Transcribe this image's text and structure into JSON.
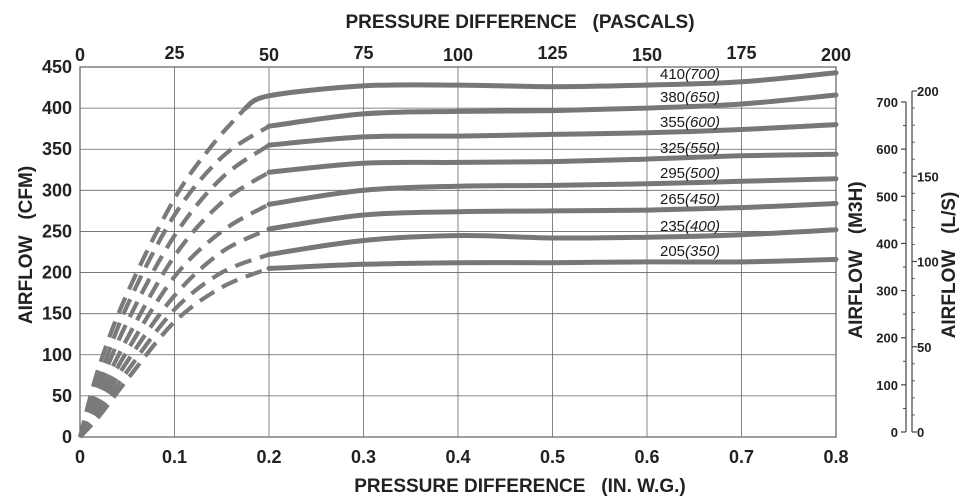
{
  "chart_data": {
    "type": "line",
    "top_title": "PRESSURE DIFFERENCE   (PASCALS)",
    "bottom_title": "PRESSURE DIFFERENCE   (IN. W.G.)",
    "left_title": "AIRFLOW   (CFM)",
    "right_title_m3h": "AIRFLOW   (M3H)",
    "right_title_ls": "AIRFLOW   (L/S)",
    "x_label": "IN. W.G.",
    "xlim": [
      0,
      0.8
    ],
    "ylim": [
      0,
      450
    ],
    "grid": true,
    "x_ticks": [
      "0",
      "0.1",
      "0.2",
      "0.3",
      "0.4",
      "0.5",
      "0.6",
      "0.7",
      "0.8"
    ],
    "y_ticks": [
      "0",
      "50",
      "100",
      "150",
      "200",
      "250",
      "300",
      "350",
      "400",
      "450"
    ],
    "top_ticks": [
      "0",
      "25",
      "50",
      "75",
      "100",
      "125",
      "150",
      "175",
      "200"
    ],
    "m3h_ticks": [
      "0",
      "100",
      "200",
      "300",
      "400",
      "500",
      "600",
      "700"
    ],
    "ls_ticks": [
      "0",
      "50",
      "100",
      "150",
      "200"
    ],
    "series": [
      {
        "label_cfm": "410",
        "label_m3h": "(700)",
        "dashed": [
          [
            0,
            0
          ],
          [
            0.02,
            85
          ],
          [
            0.05,
            175
          ],
          [
            0.1,
            290
          ],
          [
            0.14,
            355
          ],
          [
            0.175,
            400
          ]
        ],
        "solid": [
          [
            0.175,
            400
          ],
          [
            0.2,
            415
          ],
          [
            0.3,
            427
          ],
          [
            0.4,
            428
          ],
          [
            0.5,
            426
          ],
          [
            0.6,
            428
          ],
          [
            0.7,
            432
          ],
          [
            0.8,
            443
          ]
        ]
      },
      {
        "label_cfm": "380",
        "label_m3h": "(650)",
        "dashed": [
          [
            0,
            0
          ],
          [
            0.02,
            70
          ],
          [
            0.05,
            160
          ],
          [
            0.1,
            270
          ],
          [
            0.15,
            340
          ],
          [
            0.2,
            378
          ]
        ],
        "solid": [
          [
            0.2,
            378
          ],
          [
            0.3,
            393
          ],
          [
            0.4,
            396
          ],
          [
            0.5,
            397
          ],
          [
            0.6,
            400
          ],
          [
            0.7,
            405
          ],
          [
            0.8,
            416
          ]
        ]
      },
      {
        "label_cfm": "355",
        "label_m3h": "(600)",
        "dashed": [
          [
            0,
            0
          ],
          [
            0.02,
            60
          ],
          [
            0.05,
            140
          ],
          [
            0.1,
            245
          ],
          [
            0.15,
            315
          ],
          [
            0.2,
            355
          ]
        ],
        "solid": [
          [
            0.2,
            355
          ],
          [
            0.3,
            365
          ],
          [
            0.4,
            366
          ],
          [
            0.5,
            368
          ],
          [
            0.6,
            370
          ],
          [
            0.7,
            374
          ],
          [
            0.8,
            380
          ]
        ]
      },
      {
        "label_cfm": "325",
        "label_m3h": "(550)",
        "dashed": [
          [
            0,
            0
          ],
          [
            0.02,
            50
          ],
          [
            0.05,
            120
          ],
          [
            0.1,
            220
          ],
          [
            0.15,
            285
          ],
          [
            0.2,
            322
          ]
        ],
        "solid": [
          [
            0.2,
            322
          ],
          [
            0.3,
            333
          ],
          [
            0.4,
            334
          ],
          [
            0.5,
            335
          ],
          [
            0.6,
            338
          ],
          [
            0.7,
            342
          ],
          [
            0.8,
            344
          ]
        ]
      },
      {
        "label_cfm": "295",
        "label_m3h": "(500)",
        "dashed": [
          [
            0,
            0
          ],
          [
            0.02,
            42
          ],
          [
            0.05,
            105
          ],
          [
            0.1,
            195
          ],
          [
            0.15,
            250
          ],
          [
            0.2,
            283
          ]
        ],
        "solid": [
          [
            0.2,
            283
          ],
          [
            0.3,
            300
          ],
          [
            0.4,
            305
          ],
          [
            0.5,
            306
          ],
          [
            0.6,
            308
          ],
          [
            0.7,
            311
          ],
          [
            0.8,
            314
          ]
        ]
      },
      {
        "label_cfm": "265",
        "label_m3h": "(450)",
        "dashed": [
          [
            0,
            0
          ],
          [
            0.02,
            35
          ],
          [
            0.05,
            92
          ],
          [
            0.1,
            172
          ],
          [
            0.15,
            225
          ],
          [
            0.2,
            253
          ]
        ],
        "solid": [
          [
            0.2,
            253
          ],
          [
            0.3,
            270
          ],
          [
            0.4,
            274
          ],
          [
            0.5,
            275
          ],
          [
            0.6,
            276
          ],
          [
            0.7,
            279
          ],
          [
            0.8,
            284
          ]
        ]
      },
      {
        "label_cfm": "235",
        "label_m3h": "(400)",
        "dashed": [
          [
            0,
            0
          ],
          [
            0.02,
            30
          ],
          [
            0.05,
            80
          ],
          [
            0.1,
            155
          ],
          [
            0.15,
            200
          ],
          [
            0.2,
            222
          ]
        ],
        "solid": [
          [
            0.2,
            222
          ],
          [
            0.3,
            239
          ],
          [
            0.4,
            245
          ],
          [
            0.5,
            242
          ],
          [
            0.6,
            243
          ],
          [
            0.7,
            246
          ],
          [
            0.8,
            252
          ]
        ]
      },
      {
        "label_cfm": "205",
        "label_m3h": "(350)",
        "dashed": [
          [
            0,
            0
          ],
          [
            0.02,
            25
          ],
          [
            0.05,
            70
          ],
          [
            0.1,
            140
          ],
          [
            0.15,
            182
          ],
          [
            0.2,
            205
          ]
        ],
        "solid": [
          [
            0.2,
            205
          ],
          [
            0.3,
            210
          ],
          [
            0.4,
            212
          ],
          [
            0.5,
            212
          ],
          [
            0.6,
            213
          ],
          [
            0.7,
            213
          ],
          [
            0.8,
            216
          ]
        ]
      }
    ]
  }
}
